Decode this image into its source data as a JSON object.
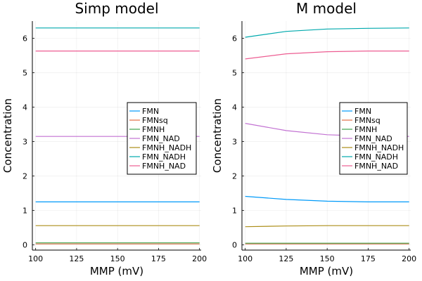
{
  "colors": {
    "FMN": "#009af9",
    "FMNsq": "#e26f46",
    "FMNH": "#3da44d",
    "FMN_NAD": "#c271d2",
    "FMNH_NADH": "#ac8e18",
    "FMN_NADH": "#00a9ad",
    "FMNH_NAD": "#ed5d92"
  },
  "chart_data": [
    {
      "type": "line",
      "title": "Simp model",
      "xlabel": "MMP (mV)",
      "ylabel": "Concentration",
      "xlim": [
        98,
        201
      ],
      "ylim": [
        -0.15,
        6.5
      ],
      "xticks": [
        "100",
        "125",
        "150",
        "175",
        "200"
      ],
      "yticks": [
        "0",
        "1",
        "2",
        "3",
        "4",
        "5",
        "6"
      ],
      "legend": "right",
      "series": [
        {
          "name": "FMN",
          "x": [
            100,
            200
          ],
          "y": [
            1.25,
            1.25
          ]
        },
        {
          "name": "FMNsq",
          "x": [
            100,
            200
          ],
          "y": [
            0.03,
            0.03
          ]
        },
        {
          "name": "FMNH",
          "x": [
            100,
            200
          ],
          "y": [
            0.06,
            0.06
          ]
        },
        {
          "name": "FMN_NAD",
          "x": [
            100,
            200
          ],
          "y": [
            3.15,
            3.15
          ]
        },
        {
          "name": "FMNH_NADH",
          "x": [
            100,
            200
          ],
          "y": [
            0.56,
            0.56
          ]
        },
        {
          "name": "FMN_NADH",
          "x": [
            100,
            200
          ],
          "y": [
            6.3,
            6.3
          ]
        },
        {
          "name": "FMNH_NAD",
          "x": [
            100,
            200
          ],
          "y": [
            5.63,
            5.63
          ]
        }
      ]
    },
    {
      "type": "line",
      "title": "M model",
      "xlabel": "MMP (mV)",
      "ylabel": "Concentration",
      "xlim": [
        98,
        201
      ],
      "ylim": [
        -0.15,
        6.5
      ],
      "xticks": [
        "100",
        "125",
        "150",
        "175",
        "200"
      ],
      "yticks": [
        "0",
        "1",
        "2",
        "3",
        "4",
        "5",
        "6"
      ],
      "legend": "right",
      "series": [
        {
          "name": "FMN",
          "x": [
            100,
            125,
            150,
            175,
            200
          ],
          "y": [
            1.41,
            1.32,
            1.27,
            1.25,
            1.25
          ]
        },
        {
          "name": "FMNsq",
          "x": [
            100,
            125,
            150,
            175,
            200
          ],
          "y": [
            0.03,
            0.03,
            0.03,
            0.03,
            0.03
          ]
        },
        {
          "name": "FMNH",
          "x": [
            100,
            125,
            150,
            175,
            200
          ],
          "y": [
            0.05,
            0.05,
            0.05,
            0.05,
            0.05
          ]
        },
        {
          "name": "FMN_NAD",
          "x": [
            100,
            125,
            150,
            175,
            200
          ],
          "y": [
            3.53,
            3.32,
            3.2,
            3.16,
            3.15
          ]
        },
        {
          "name": "FMNH_NADH",
          "x": [
            100,
            125,
            150,
            175,
            200
          ],
          "y": [
            0.53,
            0.55,
            0.56,
            0.56,
            0.56
          ]
        },
        {
          "name": "FMN_NADH",
          "x": [
            100,
            125,
            150,
            175,
            200
          ],
          "y": [
            6.03,
            6.2,
            6.27,
            6.29,
            6.3
          ]
        },
        {
          "name": "FMNH_NAD",
          "x": [
            100,
            125,
            150,
            175,
            200
          ],
          "y": [
            5.4,
            5.55,
            5.61,
            5.63,
            5.63
          ]
        }
      ]
    }
  ]
}
